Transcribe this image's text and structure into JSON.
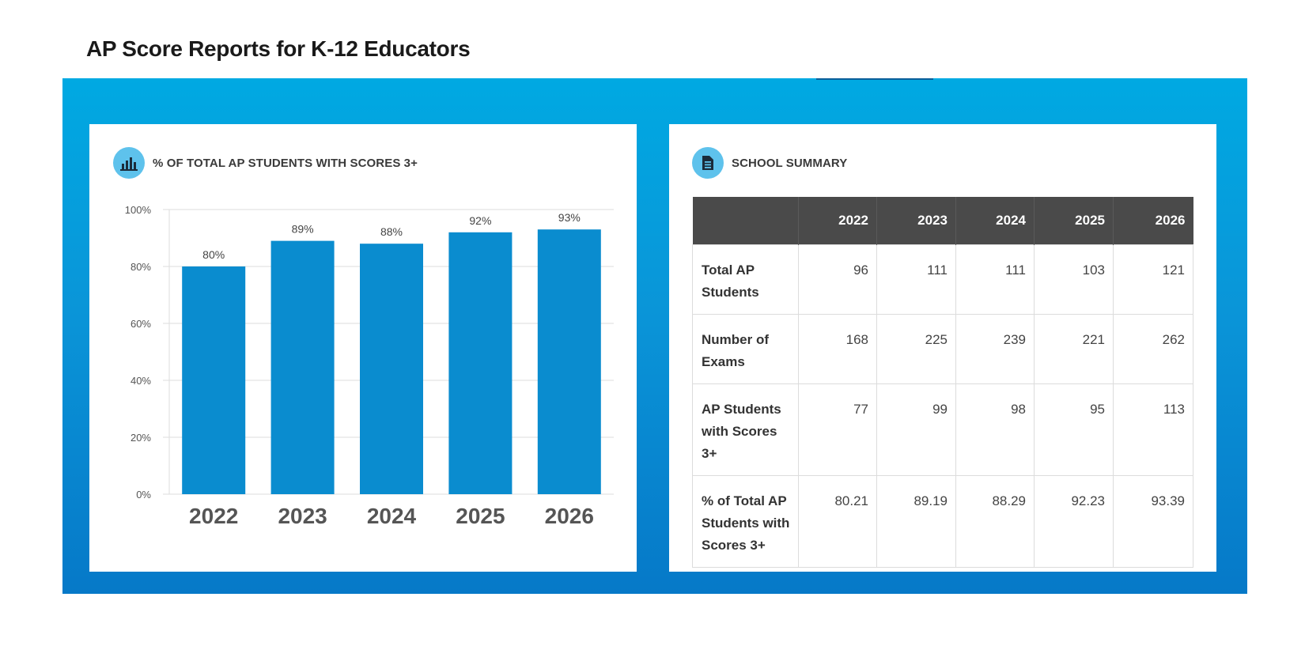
{
  "page": {
    "title": "AP Score Reports for K-12 Educators"
  },
  "colors": {
    "banner_top": "#00a9e2",
    "banner_bottom": "#0679c8",
    "bar": "#0a8ccf",
    "icon_bg": "#5ec2ec",
    "table_header": "#4a4a4a"
  },
  "chart_card": {
    "title": "% OF TOTAL AP STUDENTS WITH SCORES 3+",
    "icon": "bar-chart-icon"
  },
  "summary_card": {
    "title": "SCHOOL SUMMARY",
    "icon": "document-icon"
  },
  "chart_data": {
    "type": "bar",
    "title": "% OF TOTAL AP STUDENTS WITH SCORES 3+",
    "categories": [
      "2022",
      "2023",
      "2024",
      "2025",
      "2026"
    ],
    "values": [
      80,
      89,
      88,
      92,
      93
    ],
    "data_labels": [
      "80%",
      "89%",
      "88%",
      "92%",
      "93%"
    ],
    "y_ticks": [
      "0%",
      "20%",
      "40%",
      "60%",
      "80%",
      "100%"
    ],
    "y_tick_values": [
      0,
      20,
      40,
      60,
      80,
      100
    ],
    "ylim": [
      0,
      100
    ],
    "grid": true,
    "xlabel": "",
    "ylabel": ""
  },
  "table": {
    "headers": [
      "",
      "2022",
      "2023",
      "2024",
      "2025",
      "2026"
    ],
    "rows": [
      {
        "label": "Total AP Students",
        "values": [
          "96",
          "111",
          "111",
          "103",
          "121"
        ]
      },
      {
        "label": "Number of Exams",
        "values": [
          "168",
          "225",
          "239",
          "221",
          "262"
        ]
      },
      {
        "label": "AP Students with Scores 3+",
        "values": [
          "77",
          "99",
          "98",
          "95",
          "113"
        ]
      },
      {
        "label": "% of Total AP Students with Scores 3+",
        "values": [
          "80.21",
          "89.19",
          "88.29",
          "92.23",
          "93.39"
        ]
      }
    ]
  }
}
